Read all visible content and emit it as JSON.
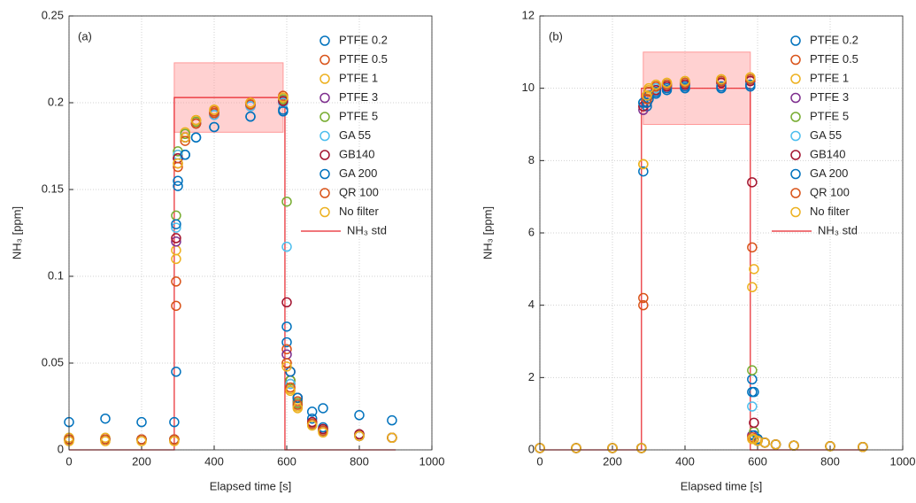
{
  "chart_data": [
    {
      "type": "scatter",
      "panel_label": "(a)",
      "xlabel": "Elapsed time [s]",
      "ylabel": "NH₃ [ppm]",
      "xlim": [
        0,
        1000
      ],
      "xticks": [
        0,
        200,
        400,
        600,
        800,
        1000
      ],
      "ylim": [
        0,
        0.25
      ],
      "yticks": [
        0,
        0.05,
        0.1,
        0.15,
        0.2,
        0.25
      ],
      "grid": true,
      "legend": "northeast",
      "x": [
        0,
        100,
        200,
        290,
        295,
        300,
        320,
        350,
        400,
        500,
        590,
        600,
        610,
        630,
        670,
        700,
        800,
        890
      ],
      "series": [
        {
          "name": "PTFE 0.2",
          "color": "#0072BD",
          "values": [
            0.006,
            0.006,
            0.006,
            0.006,
            0.045,
            0.155,
            0.17,
            0.18,
            0.186,
            0.192,
            0.196,
            0.062,
            0.04,
            0.03,
            0.018,
            0.013,
            0.009,
            0.007
          ]
        },
        {
          "name": "PTFE 0.5",
          "color": "#D95319",
          "values": [
            0.006,
            0.006,
            0.006,
            0.006,
            0.097,
            0.165,
            0.18,
            0.19,
            0.195,
            0.2,
            0.204,
            0.058,
            0.04,
            0.028,
            0.016,
            0.012,
            0.009,
            0.007
          ]
        },
        {
          "name": "PTFE 1",
          "color": "#EDB120",
          "values": [
            0.007,
            0.007,
            0.006,
            0.006,
            0.115,
            0.17,
            0.183,
            0.19,
            0.196,
            0.2,
            0.202,
            0.05,
            0.035,
            0.025,
            0.015,
            0.011,
            0.008,
            0.007
          ]
        },
        {
          "name": "PTFE 3",
          "color": "#7E2F8E",
          "values": [
            0.006,
            0.006,
            0.006,
            0.006,
            0.12,
            0.168,
            0.18,
            0.188,
            0.193,
            0.198,
            0.2,
            0.055,
            0.038,
            0.027,
            0.015,
            0.011,
            0.008,
            0.007
          ]
        },
        {
          "name": "PTFE 5",
          "color": "#77AC30",
          "values": [
            0.006,
            0.006,
            0.006,
            0.006,
            0.135,
            0.172,
            0.182,
            0.189,
            0.194,
            0.199,
            0.202,
            0.143,
            0.04,
            0.027,
            0.015,
            0.011,
            0.008,
            0.007
          ]
        },
        {
          "name": "GA 55",
          "color": "#4DBEEE",
          "values": [
            0.006,
            0.006,
            0.006,
            0.006,
            0.128,
            0.17,
            0.18,
            0.188,
            0.193,
            0.198,
            0.2,
            0.117,
            0.038,
            0.026,
            0.015,
            0.011,
            0.008,
            0.007
          ]
        },
        {
          "name": "GB140",
          "color": "#A2142F",
          "values": [
            0.006,
            0.006,
            0.006,
            0.006,
            0.122,
            0.168,
            0.18,
            0.188,
            0.194,
            0.199,
            0.201,
            0.085,
            0.045,
            0.03,
            0.016,
            0.012,
            0.009,
            0.007
          ]
        },
        {
          "name": "GA 200",
          "color": "#0072BD",
          "values": [
            0.016,
            0.018,
            0.016,
            0.016,
            0.13,
            0.152,
            0.17,
            0.18,
            0.186,
            0.192,
            0.195,
            0.071,
            0.045,
            0.03,
            0.022,
            0.024,
            0.02,
            0.017
          ]
        },
        {
          "name": "QR 100",
          "color": "#D95319",
          "values": [
            0.006,
            0.006,
            0.006,
            0.006,
            0.083,
            0.163,
            0.178,
            0.188,
            0.194,
            0.199,
            0.203,
            0.05,
            0.036,
            0.026,
            0.015,
            0.011,
            0.008,
            0.007
          ]
        },
        {
          "name": "No filter",
          "color": "#EDB120",
          "values": [
            0.005,
            0.005,
            0.005,
            0.005,
            0.11,
            0.165,
            0.18,
            0.19,
            0.196,
            0.2,
            0.203,
            0.048,
            0.034,
            0.024,
            0.014,
            0.01,
            0.008,
            0.007
          ]
        }
      ],
      "reference": {
        "name": "NH₃ std",
        "color": "#e8242a",
        "x": [
          0,
          290,
          290,
          595,
          595,
          900
        ],
        "values": [
          0,
          0,
          0.203,
          0.203,
          0,
          0
        ]
      },
      "band": {
        "color": "#ff9999",
        "x": [
          290,
          590
        ],
        "y": [
          0.183,
          0.223
        ]
      }
    },
    {
      "type": "scatter",
      "panel_label": "(b)",
      "xlabel": "Elapsed time [s]",
      "ylabel": "NH₃ [ppm]",
      "xlim": [
        0,
        1000
      ],
      "xticks": [
        0,
        200,
        400,
        600,
        800,
        1000
      ],
      "ylim": [
        0,
        12
      ],
      "yticks": [
        0,
        2,
        4,
        6,
        8,
        10,
        12
      ],
      "grid": true,
      "legend": "northeast",
      "x": [
        0,
        100,
        200,
        280,
        285,
        295,
        300,
        320,
        350,
        400,
        500,
        580,
        585,
        590,
        600,
        620,
        650,
        700,
        800,
        890
      ],
      "series": [
        {
          "name": "PTFE 0.2",
          "color": "#0072BD",
          "values": [
            0.05,
            0.05,
            0.05,
            0.05,
            7.7,
            9.5,
            9.7,
            9.85,
            9.95,
            10,
            10,
            10.05,
            1.95,
            1.6,
            0.3,
            0.2,
            0.15,
            0.12,
            0.1,
            0.08
          ]
        },
        {
          "name": "PTFE 0.5",
          "color": "#D95319",
          "values": [
            0.05,
            0.05,
            0.05,
            0.05,
            4.2,
            9.7,
            9.9,
            10.05,
            10.1,
            10.15,
            10.2,
            10.25,
            5.6,
            0.3,
            0.25,
            0.2,
            0.15,
            0.12,
            0.1,
            0.08
          ]
        },
        {
          "name": "PTFE 1",
          "color": "#EDB120",
          "values": [
            0.05,
            0.05,
            0.05,
            0.05,
            7.9,
            9.8,
            9.95,
            10.1,
            10.15,
            10.2,
            10.25,
            10.3,
            4.5,
            5.0,
            0.3,
            0.2,
            0.15,
            0.12,
            0.1,
            0.08
          ]
        },
        {
          "name": "PTFE 3",
          "color": "#7E2F8E",
          "values": [
            0.05,
            0.05,
            0.05,
            0.05,
            9.4,
            9.6,
            9.8,
            9.95,
            10.05,
            10.1,
            10.15,
            10.2,
            0.4,
            0.3,
            0.25,
            0.2,
            0.15,
            0.12,
            0.1,
            0.08
          ]
        },
        {
          "name": "PTFE 5",
          "color": "#77AC30",
          "values": [
            0.05,
            0.05,
            0.05,
            0.05,
            9.6,
            9.7,
            9.9,
            10,
            10.1,
            10.15,
            10.2,
            10.25,
            2.2,
            0.5,
            0.3,
            0.2,
            0.15,
            0.12,
            0.1,
            0.08
          ]
        },
        {
          "name": "GA 55",
          "color": "#4DBEEE",
          "values": [
            0.05,
            0.05,
            0.05,
            0.05,
            9.6,
            9.7,
            9.9,
            10,
            10.1,
            10.15,
            10.2,
            10.25,
            1.2,
            0.4,
            0.3,
            0.2,
            0.15,
            0.12,
            0.1,
            0.08
          ]
        },
        {
          "name": "GB140",
          "color": "#A2142F",
          "values": [
            0.05,
            0.05,
            0.05,
            0.05,
            9.5,
            9.6,
            9.8,
            9.95,
            10.05,
            10.1,
            10.15,
            10.2,
            7.4,
            0.75,
            0.3,
            0.2,
            0.15,
            0.12,
            0.1,
            0.08
          ]
        },
        {
          "name": "GA 200",
          "color": "#0072BD",
          "values": [
            0.05,
            0.05,
            0.05,
            0.05,
            9.6,
            9.6,
            9.8,
            9.9,
            10,
            10.05,
            10.05,
            10.1,
            1.6,
            0.4,
            0.3,
            0.2,
            0.15,
            0.12,
            0.1,
            0.08
          ]
        },
        {
          "name": "QR 100",
          "color": "#D95319",
          "values": [
            0.05,
            0.05,
            0.05,
            0.05,
            4.0,
            9.7,
            9.9,
            10.05,
            10.1,
            10.15,
            10.2,
            10.25,
            0.35,
            0.3,
            0.25,
            0.2,
            0.15,
            0.12,
            0.1,
            0.08
          ]
        },
        {
          "name": "No filter",
          "color": "#EDB120",
          "values": [
            0.05,
            0.05,
            0.05,
            0.05,
            7.9,
            9.8,
            10,
            10.1,
            10.15,
            10.2,
            10.25,
            10.3,
            0.3,
            0.3,
            0.25,
            0.2,
            0.15,
            0.12,
            0.1,
            0.08
          ]
        }
      ],
      "reference": {
        "name": "NH₃ std",
        "color": "#e8242a",
        "x": [
          0,
          280,
          280,
          580,
          580,
          900
        ],
        "values": [
          0,
          0,
          10,
          10,
          0,
          0
        ]
      },
      "band": {
        "color": "#ff9999",
        "x": [
          285,
          580
        ],
        "y": [
          9,
          11
        ]
      }
    }
  ]
}
